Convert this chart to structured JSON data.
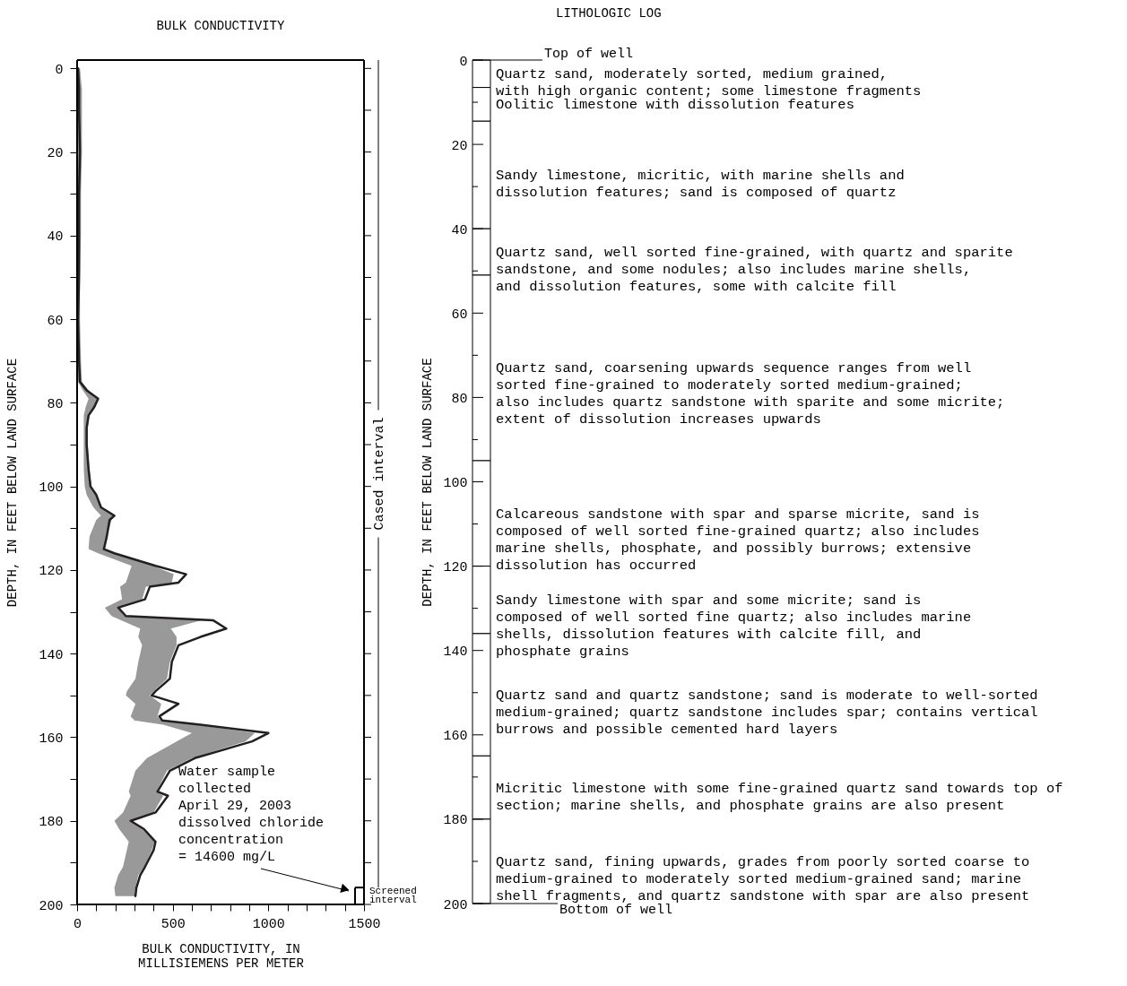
{
  "chart_data": [
    {
      "type": "line",
      "title": "BULK CONDUCTIVITY",
      "xlabel": "BULK CONDUCTIVITY, IN\nMILLISIEMENS PER METER",
      "ylabel": "DEPTH, IN FEET BELOW LAND SURFACE",
      "orientation": "horizontal",
      "x": [
        0,
        5,
        10,
        20,
        30,
        40,
        50,
        60,
        70,
        75,
        77,
        79,
        81,
        83,
        86,
        90,
        96,
        100,
        102,
        105,
        107,
        108,
        112,
        115,
        116,
        119,
        121,
        123,
        124,
        127,
        129,
        131,
        132,
        134,
        136,
        138,
        142,
        146,
        149,
        150,
        152,
        155,
        156,
        157,
        159,
        161,
        165,
        168,
        173,
        174,
        178,
        180,
        182,
        185,
        187,
        191,
        193,
        196,
        198
      ],
      "series": [
        {
          "color": "#231f20",
          "values": [
            5,
            10,
            10,
            15,
            10,
            10,
            10,
            5,
            10,
            15,
            50,
            110,
            90,
            60,
            50,
            50,
            60,
            70,
            100,
            125,
            195,
            170,
            155,
            140,
            195,
            410,
            570,
            530,
            380,
            355,
            215,
            255,
            710,
            780,
            645,
            530,
            495,
            485,
            410,
            390,
            530,
            430,
            445,
            645,
            1000,
            915,
            615,
            485,
            420,
            475,
            410,
            280,
            350,
            410,
            400,
            355,
            330,
            310,
            305
          ],
          "lower": [
            0,
            0,
            0,
            0,
            0,
            0,
            0,
            0,
            0,
            5,
            30,
            60,
            45,
            35,
            35,
            35,
            35,
            40,
            50,
            85,
            125,
            100,
            65,
            60,
            110,
            285,
            270,
            255,
            225,
            235,
            145,
            180,
            230,
            330,
            320,
            340,
            320,
            305,
            260,
            255,
            305,
            280,
            300,
            450,
            600,
            520,
            365,
            305,
            270,
            280,
            240,
            195,
            220,
            270,
            260,
            240,
            215,
            195,
            200
          ],
          "upper": [
            15,
            25,
            25,
            25,
            20,
            20,
            15,
            15,
            20,
            25,
            60,
            110,
            95,
            65,
            55,
            55,
            65,
            75,
            105,
            125,
            195,
            180,
            155,
            140,
            195,
            395,
            505,
            495,
            360,
            340,
            210,
            250,
            650,
            490,
            520,
            520,
            485,
            470,
            400,
            380,
            440,
            420,
            440,
            620,
            930,
            880,
            600,
            470,
            415,
            450,
            400,
            280,
            340,
            405,
            390,
            350,
            320,
            305,
            300
          ]
        }
      ],
      "xlim": [
        0,
        1500
      ],
      "xticks": [
        0,
        {
          "value": 100,
          "label": null
        },
        {
          "value": 200,
          "label": null
        },
        {
          "value": 300,
          "label": null
        },
        {
          "value": 400,
          "label": null
        },
        500,
        {
          "value": 600,
          "label": null
        },
        {
          "value": 700,
          "label": null
        },
        {
          "value": 800,
          "label": null
        },
        {
          "value": 900,
          "label": null
        },
        1000,
        {
          "value": 1100,
          "label": null
        },
        {
          "value": 1200,
          "label": null
        },
        {
          "value": 1300,
          "label": null
        },
        {
          "value": 1400,
          "label": null
        },
        1500
      ],
      "ylim": [
        200,
        -2
      ],
      "yticks": [
        0,
        {
          "value": 10,
          "label": null
        },
        20,
        {
          "value": 30,
          "label": null
        },
        40,
        {
          "value": 50,
          "label": null
        },
        60,
        {
          "value": 70,
          "label": null
        },
        80,
        {
          "value": 90,
          "label": null
        },
        100,
        {
          "value": 110,
          "label": null
        },
        120,
        {
          "value": 130,
          "label": null
        },
        140,
        {
          "value": 150,
          "label": null
        },
        160,
        {
          "value": 170,
          "label": null
        },
        180,
        {
          "value": 190,
          "label": null
        },
        200
      ],
      "grid": false,
      "annotations": [
        "Cased interval",
        "Screened\ninterval",
        "Water sample\ncollected\nApril 29, 2003\ndissolved chloride\nconcentration\n= 14600 mg/L"
      ]
    },
    {
      "type": "bar",
      "stacked": true,
      "title": "LITHOLOGIC LOG",
      "ylabel": "DEPTH, IN FEET BELOW LAND SURFACE",
      "categories": [
        null
      ],
      "ylim": [
        200,
        0
      ],
      "yticks": [
        0,
        {
          "value": 10,
          "label": null
        },
        20,
        {
          "value": 30,
          "label": null
        },
        40,
        {
          "value": 50,
          "label": null
        },
        60,
        {
          "value": 70,
          "label": null
        },
        80,
        {
          "value": 90,
          "label": null
        },
        100,
        {
          "value": 110,
          "label": null
        },
        120,
        {
          "value": 130,
          "label": null
        },
        140,
        {
          "value": 150,
          "label": null
        },
        160,
        {
          "value": 170,
          "label": null
        },
        180,
        {
          "value": 190,
          "label": null
        },
        200
      ],
      "tick_labels": "y",
      "grid": false,
      "ref_lines": [
        {
          "axis": "y",
          "value": 0,
          "label": "Top of well"
        },
        {
          "axis": "y",
          "value": 200,
          "label": "Bottom of well"
        }
      ],
      "series": [
        {
          "name": "Quartz sand, moderately sorted, medium grained,\nwith high organic content; some limestone fragments",
          "color": "#ffffff",
          "values": [
            6.5
          ]
        },
        {
          "name": "Oolitic limestone with dissolution features",
          "color": "#ffffff",
          "values": [
            8
          ]
        },
        {
          "name": "Sandy limestone, micritic, with marine shells and\ndissolution features; sand is composed of quartz",
          "color": "#ffffff",
          "values": [
            25.5
          ]
        },
        {
          "name": "Quartz sand, well sorted fine-grained, with quartz and sparite\nsandstone, and some nodules; also includes marine shells,\nand dissolution features, some with calcite fill",
          "color": "#ffffff",
          "values": [
            11
          ]
        },
        {
          "name": "Quartz sand, coarsening upwards sequence ranges from well\nsorted fine-grained to moderately sorted medium-grained;\nalso includes quartz sandstone with sparite and some micrite;\nextent of dissolution increases upwards",
          "color": "#ffffff",
          "values": [
            44
          ]
        },
        {
          "name": "Calcareous sandstone with spar and sparse micrite, sand is\ncomposed of well sorted fine-grained quartz; also includes\nmarine shells, phosphate, and possibly burrows; extensive\ndissolution has occurred",
          "color": "#ffffff",
          "values": [
            25
          ]
        },
        {
          "name": "Sandy limestone with spar and some micrite; sand is\ncomposed of well sorted fine quartz; also includes marine\nshells, dissolution features with calcite fill, and\nphosphate grains",
          "color": "#ffffff",
          "values": [
            16
          ]
        },
        {
          "name": "Quartz sand and quartz sandstone; sand is moderate to well-sorted\nmedium-grained; quartz sandstone includes spar; contains vertical\nburrows and possible cemented hard layers",
          "color": "#ffffff",
          "values": [
            29
          ]
        },
        {
          "name": "Micritic limestone with some fine-grained quartz sand towards top of\nsection; marine shells, and phosphate grains are also present",
          "color": "#ffffff",
          "values": [
            15
          ]
        },
        {
          "name": "Quartz sand, fining upwards, grades from poorly sorted coarse to\nmedium-grained to moderately sorted medium-grained sand; marine\nshell fragments, and quartz sandstone with spar are also present",
          "color": "#ffffff",
          "values": [
            20
          ]
        }
      ]
    }
  ]
}
